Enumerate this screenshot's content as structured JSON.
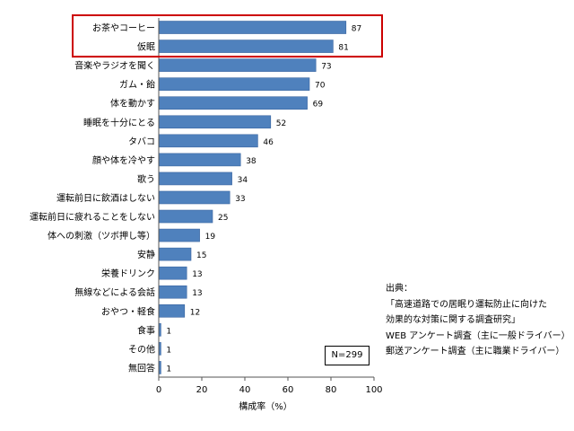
{
  "chart_data": {
    "type": "bar",
    "orientation": "horizontal",
    "categories": [
      "お茶やコーヒー",
      "仮眠",
      "音楽やラジオを聞く",
      "ガム・飴",
      "体を動かす",
      "睡眠を十分にとる",
      "タバコ",
      "顔や体を冷やす",
      "歌う",
      "運転前日に飲酒はしない",
      "運転前日に疲れることをしない",
      "体への刺激（ツボ押し等）",
      "安静",
      "栄養ドリンク",
      "無線などによる会話",
      "おやつ・軽食",
      "食事",
      "その他",
      "無回答"
    ],
    "values": [
      87,
      81,
      73,
      70,
      69,
      52,
      46,
      38,
      34,
      33,
      25,
      19,
      15,
      13,
      13,
      12,
      1,
      1,
      1
    ],
    "xlabel": "構成率（%）",
    "ylabel": "",
    "xlim": [
      0,
      100
    ],
    "xticks": [
      0,
      20,
      40,
      60,
      80,
      100
    ],
    "grid": false,
    "bar_color": "#4f81bd",
    "highlight": {
      "categories": [
        "お茶やコーヒー",
        "仮眠"
      ],
      "color": "#cc0000"
    }
  },
  "note": {
    "n_label": "N=299"
  },
  "source": {
    "lines": [
      "出典：",
      "「高速道路での居眠り運転防止に向けた",
      "効果的な対策に関する調査研究」",
      "WEB アンケート調査（主に一般ドライバー）",
      "郵送アンケート調査（主に職業ドライバー）"
    ]
  }
}
